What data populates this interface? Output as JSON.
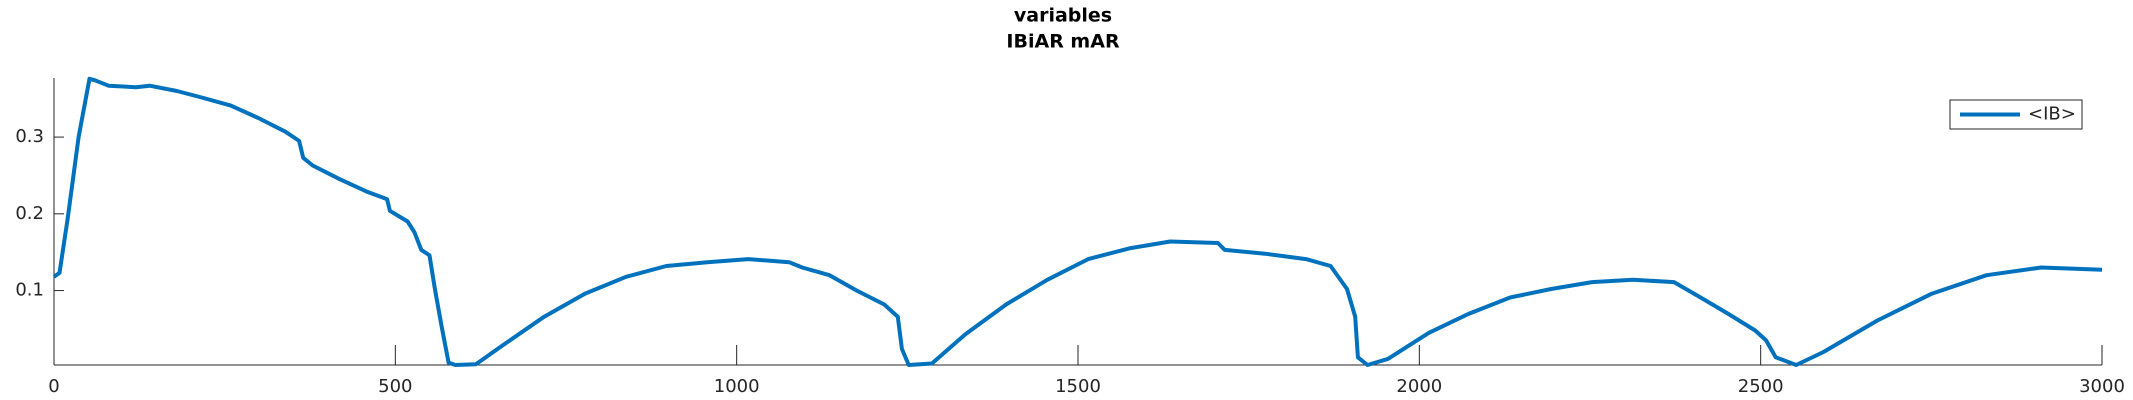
{
  "chart_data": {
    "type": "line",
    "title": "variables",
    "subtitle": "IBiAR mAR",
    "x": [
      0,
      8,
      20,
      36,
      52,
      60,
      80,
      120,
      140,
      180,
      219,
      259,
      299,
      339,
      359,
      365,
      379,
      419,
      458,
      488,
      492,
      518,
      528,
      538,
      550,
      558,
      568,
      578,
      588,
      618,
      658,
      718,
      778,
      838,
      897,
      957,
      1017,
      1077,
      1096,
      1136,
      1176,
      1216,
      1236,
      1242,
      1252,
      1286,
      1335,
      1395,
      1455,
      1515,
      1575,
      1635,
      1705,
      1715,
      1774,
      1834,
      1870,
      1894,
      1906,
      1910,
      1924,
      1954,
      2014,
      2073,
      2133,
      2193,
      2253,
      2313,
      2373,
      2412,
      2452,
      2492,
      2508,
      2522,
      2552,
      2592,
      2671,
      2751,
      2831,
      2911,
      3000
    ],
    "series": [
      {
        "name": "<IB>",
        "color": "#0072bd",
        "values": [
          0.118,
          0.123,
          0.194,
          0.3,
          0.376,
          0.374,
          0.367,
          0.365,
          0.367,
          0.36,
          0.351,
          0.341,
          0.325,
          0.307,
          0.295,
          0.273,
          0.263,
          0.245,
          0.229,
          0.219,
          0.204,
          0.19,
          0.176,
          0.153,
          0.146,
          0.102,
          0.052,
          0.006,
          0.003,
          0.004,
          0.029,
          0.066,
          0.096,
          0.118,
          0.132,
          0.137,
          0.141,
          0.137,
          0.13,
          0.12,
          0.1,
          0.082,
          0.066,
          0.024,
          0.003,
          0.005,
          0.043,
          0.082,
          0.114,
          0.141,
          0.155,
          0.164,
          0.162,
          0.153,
          0.148,
          0.141,
          0.132,
          0.102,
          0.066,
          0.013,
          0.003,
          0.011,
          0.045,
          0.07,
          0.091,
          0.102,
          0.111,
          0.114,
          0.111,
          0.091,
          0.07,
          0.048,
          0.035,
          0.013,
          0.003,
          0.02,
          0.061,
          0.096,
          0.12,
          0.13,
          0.127
        ]
      }
    ],
    "xlim": [
      0,
      3000
    ],
    "xticks": [
      0,
      500,
      1000,
      1500,
      2000,
      2500,
      3000
    ],
    "ylim": [
      0.003,
      0.377
    ],
    "yticks": [
      0.1,
      0.2,
      0.3
    ],
    "legend": "northeast"
  }
}
